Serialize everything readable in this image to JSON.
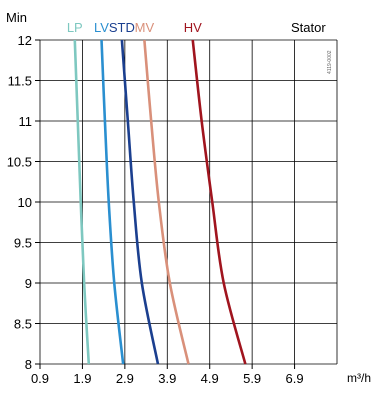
{
  "chart_data": {
    "type": "line",
    "title": "",
    "ylabel": "Min",
    "xlabel": "m³/h",
    "corner_label": "Stator",
    "side_note": "4119-0002",
    "xlim": [
      0.9,
      7.9
    ],
    "ylim": [
      8,
      12
    ],
    "x_ticks": [
      0.9,
      1.9,
      2.9,
      3.9,
      4.9,
      5.9,
      6.9
    ],
    "x_tick_labels": [
      "0.9",
      "1.9",
      "2.9",
      "3.9",
      "4.9",
      "5.9",
      "6.9"
    ],
    "y_ticks": [
      8,
      8.5,
      9,
      9.5,
      10,
      10.5,
      11,
      11.5,
      12
    ],
    "y_tick_labels": [
      "8",
      "8.5",
      "9",
      "9.5",
      "10",
      "10.5",
      "11",
      "11.5",
      "12"
    ],
    "grid": true,
    "series": [
      {
        "name": "LP",
        "color": "#7ec8c0",
        "points": [
          [
            1.72,
            12
          ],
          [
            1.79,
            11
          ],
          [
            1.86,
            10
          ],
          [
            1.94,
            9
          ],
          [
            2.05,
            8
          ]
        ]
      },
      {
        "name": "LV",
        "color": "#2a8fd0",
        "points": [
          [
            2.35,
            12
          ],
          [
            2.43,
            11
          ],
          [
            2.52,
            10
          ],
          [
            2.65,
            9
          ],
          [
            2.86,
            8
          ]
        ]
      },
      {
        "name": "STD",
        "color": "#1b3f8f",
        "points": [
          [
            2.83,
            12
          ],
          [
            2.97,
            11
          ],
          [
            3.11,
            10
          ],
          [
            3.3,
            9
          ],
          [
            3.68,
            8
          ]
        ]
      },
      {
        "name": "MV",
        "color": "#d9907a",
        "points": [
          [
            3.36,
            12
          ],
          [
            3.52,
            11
          ],
          [
            3.7,
            10
          ],
          [
            3.96,
            9
          ],
          [
            4.4,
            8
          ]
        ]
      },
      {
        "name": "HV",
        "color": "#a0141e",
        "points": [
          [
            4.5,
            12
          ],
          [
            4.71,
            11
          ],
          [
            4.96,
            10
          ],
          [
            5.23,
            9
          ],
          [
            5.74,
            8
          ]
        ]
      }
    ]
  }
}
